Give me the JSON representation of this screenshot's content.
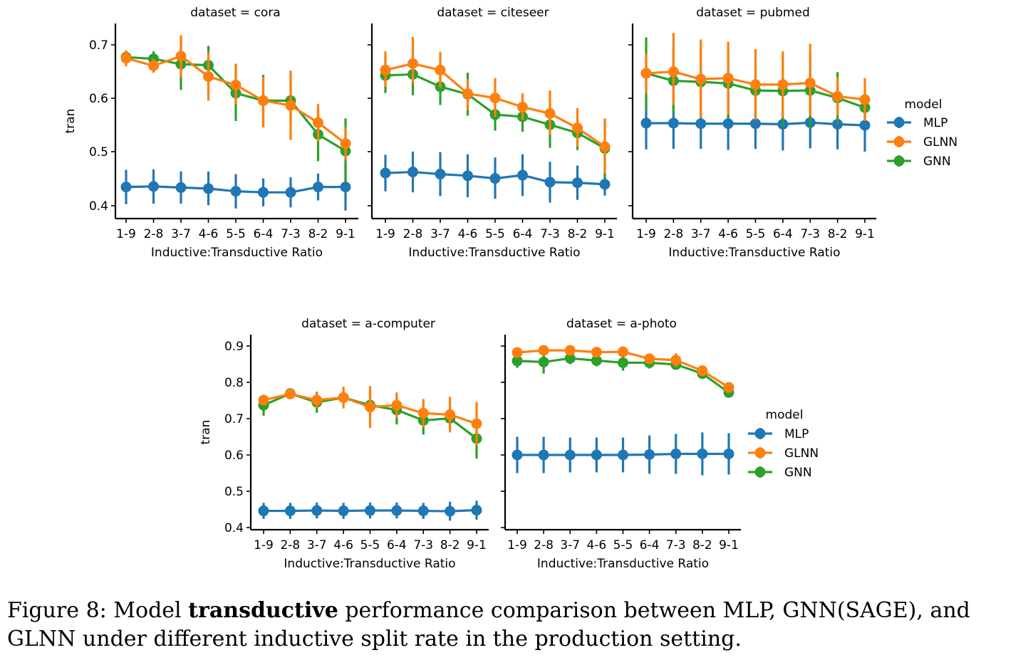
{
  "caption": {
    "prefix": "Figure 8: Model ",
    "bold": "transductive",
    "suffix": " performance comparison between MLP, GNN(SAGE), and GLNN under different inductive split rate in the production setting."
  },
  "legend": {
    "title": "model",
    "entries": [
      "MLP",
      "GLNN",
      "GNN"
    ]
  },
  "colors": {
    "MLP": "#1f77b4",
    "GLNN": "#ff7f0e",
    "GNN": "#2ca02c"
  },
  "chart_data": [
    {
      "type": "line",
      "title": "dataset = cora",
      "xlabel": "Inductive:Transductive Ratio",
      "ylabel": "tran",
      "categories": [
        "1-9",
        "2-8",
        "3-7",
        "4-6",
        "5-5",
        "6-4",
        "7-3",
        "8-2",
        "9-1"
      ],
      "yticks": [
        "0.4",
        "0.5",
        "0.6",
        "0.7"
      ],
      "ylim": [
        0.37,
        0.735
      ],
      "series": [
        {
          "name": "MLP",
          "values": [
            0.435,
            0.436,
            0.434,
            0.432,
            0.427,
            0.425,
            0.425,
            0.435,
            0.435
          ],
          "err": [
            [
              0.403,
              0.467
            ],
            [
              0.404,
              0.468
            ],
            [
              0.404,
              0.464
            ],
            [
              0.401,
              0.464
            ],
            [
              0.395,
              0.459
            ],
            [
              0.399,
              0.451
            ],
            [
              0.397,
              0.453
            ],
            [
              0.41,
              0.46
            ],
            [
              0.391,
              0.479
            ]
          ]
        },
        {
          "name": "GLNN",
          "values": [
            0.675,
            0.661,
            0.679,
            0.641,
            0.625,
            0.596,
            0.587,
            0.555,
            0.516
          ],
          "err": [
            [
              0.66,
              0.69
            ],
            [
              0.648,
              0.674
            ],
            [
              0.64,
              0.718
            ],
            [
              0.596,
              0.686
            ],
            [
              0.589,
              0.665
            ],
            [
              0.546,
              0.64
            ],
            [
              0.523,
              0.652
            ],
            [
              0.52,
              0.59
            ],
            [
              0.486,
              0.546
            ]
          ]
        },
        {
          "name": "GNN",
          "values": [
            0.677,
            0.674,
            0.664,
            0.662,
            0.61,
            0.596,
            0.596,
            0.533,
            0.502
          ],
          "err": [
            [
              0.669,
              0.685
            ],
            [
              0.66,
              0.688
            ],
            [
              0.616,
              0.712
            ],
            [
              0.626,
              0.698
            ],
            [
              0.558,
              0.662
            ],
            [
              0.548,
              0.644
            ],
            [
              0.553,
              0.639
            ],
            [
              0.483,
              0.583
            ],
            [
              0.443,
              0.563
            ]
          ]
        }
      ]
    },
    {
      "type": "line",
      "title": "dataset = citeseer",
      "xlabel": "Inductive:Transductive Ratio",
      "ylabel": "",
      "categories": [
        "1-9",
        "2-8",
        "3-7",
        "4-6",
        "5-5",
        "6-4",
        "7-3",
        "8-2",
        "9-1"
      ],
      "yticks": [
        "0.4",
        "0.5",
        "0.6",
        "0.7"
      ],
      "ylim": [
        0.37,
        0.735
      ],
      "series": [
        {
          "name": "MLP",
          "values": [
            0.461,
            0.463,
            0.459,
            0.456,
            0.451,
            0.457,
            0.444,
            0.443,
            0.44
          ],
          "err": [
            [
              0.427,
              0.495
            ],
            [
              0.425,
              0.501
            ],
            [
              0.418,
              0.5
            ],
            [
              0.416,
              0.496
            ],
            [
              0.413,
              0.49
            ],
            [
              0.418,
              0.496
            ],
            [
              0.406,
              0.482
            ],
            [
              0.411,
              0.475
            ],
            [
              0.419,
              0.461
            ]
          ]
        },
        {
          "name": "GLNN",
          "values": [
            0.653,
            0.665,
            0.653,
            0.609,
            0.601,
            0.584,
            0.572,
            0.545,
            0.51
          ],
          "err": [
            [
              0.622,
              0.688
            ],
            [
              0.628,
              0.715
            ],
            [
              0.62,
              0.687
            ],
            [
              0.578,
              0.636
            ],
            [
              0.566,
              0.638
            ],
            [
              0.56,
              0.61
            ],
            [
              0.532,
              0.615
            ],
            [
              0.51,
              0.582
            ],
            [
              0.46,
              0.563
            ]
          ]
        },
        {
          "name": "GNN",
          "values": [
            0.643,
            0.645,
            0.622,
            0.608,
            0.57,
            0.566,
            0.551,
            0.536,
            0.507
          ],
          "err": [
            [
              0.61,
              0.68
            ],
            [
              0.606,
              0.684
            ],
            [
              0.588,
              0.656
            ],
            [
              0.568,
              0.648
            ],
            [
              0.54,
              0.6
            ],
            [
              0.538,
              0.594
            ],
            [
              0.508,
              0.594
            ],
            [
              0.504,
              0.568
            ],
            [
              0.452,
              0.562
            ]
          ]
        }
      ]
    },
    {
      "type": "line",
      "title": "dataset = pubmed",
      "xlabel": "Inductive:Transductive Ratio",
      "ylabel": "",
      "categories": [
        "1-9",
        "2-8",
        "3-7",
        "4-6",
        "5-5",
        "6-4",
        "7-3",
        "8-2",
        "9-1"
      ],
      "yticks": [
        "0.4",
        "0.5",
        "0.6",
        "0.7"
      ],
      "ylim": [
        0.37,
        0.735
      ],
      "series": [
        {
          "name": "MLP",
          "values": [
            0.554,
            0.554,
            0.553,
            0.553,
            0.553,
            0.552,
            0.555,
            0.552,
            0.55
          ],
          "err": [
            [
              0.505,
              0.603
            ],
            [
              0.506,
              0.602
            ],
            [
              0.506,
              0.6
            ],
            [
              0.504,
              0.602
            ],
            [
              0.506,
              0.6
            ],
            [
              0.503,
              0.601
            ],
            [
              0.507,
              0.603
            ],
            [
              0.505,
              0.599
            ],
            [
              0.501,
              0.599
            ]
          ]
        },
        {
          "name": "GLNN",
          "values": [
            0.647,
            0.65,
            0.636,
            0.638,
            0.626,
            0.626,
            0.629,
            0.604,
            0.598
          ],
          "err": [
            [
              0.61,
              0.684
            ],
            [
              0.588,
              0.722
            ],
            [
              0.564,
              0.71
            ],
            [
              0.57,
              0.706
            ],
            [
              0.56,
              0.692
            ],
            [
              0.564,
              0.688
            ],
            [
              0.568,
              0.702
            ],
            [
              0.568,
              0.64
            ],
            [
              0.558,
              0.638
            ]
          ]
        },
        {
          "name": "GNN",
          "values": [
            0.647,
            0.633,
            0.631,
            0.628,
            0.615,
            0.614,
            0.615,
            0.601,
            0.583
          ],
          "err": [
            [
              0.58,
              0.714
            ],
            [
              0.572,
              0.694
            ],
            [
              0.568,
              0.694
            ],
            [
              0.564,
              0.692
            ],
            [
              0.56,
              0.67
            ],
            [
              0.548,
              0.68
            ],
            [
              0.546,
              0.684
            ],
            [
              0.553,
              0.649
            ],
            [
              0.568,
              0.598
            ]
          ]
        }
      ]
    },
    {
      "type": "line",
      "title": "dataset = a-computer",
      "xlabel": "Inductive:Transductive Ratio",
      "ylabel": "tran",
      "categories": [
        "1-9",
        "2-8",
        "3-7",
        "4-6",
        "5-5",
        "6-4",
        "7-3",
        "8-2",
        "9-1"
      ],
      "yticks": [
        "0.4",
        "0.5",
        "0.6",
        "0.7",
        "0.8",
        "0.9"
      ],
      "ylim": [
        0.39,
        0.932
      ],
      "series": [
        {
          "name": "MLP",
          "values": [
            0.446,
            0.446,
            0.447,
            0.446,
            0.447,
            0.447,
            0.446,
            0.445,
            0.448
          ],
          "err": [
            [
              0.424,
              0.468
            ],
            [
              0.424,
              0.468
            ],
            [
              0.425,
              0.469
            ],
            [
              0.424,
              0.468
            ],
            [
              0.425,
              0.469
            ],
            [
              0.425,
              0.469
            ],
            [
              0.424,
              0.468
            ],
            [
              0.419,
              0.471
            ],
            [
              0.422,
              0.474
            ]
          ]
        },
        {
          "name": "GLNN",
          "values": [
            0.751,
            0.768,
            0.751,
            0.758,
            0.732,
            0.737,
            0.715,
            0.711,
            0.686
          ],
          "err": [
            [
              0.738,
              0.764
            ],
            [
              0.76,
              0.776
            ],
            [
              0.73,
              0.772
            ],
            [
              0.728,
              0.788
            ],
            [
              0.674,
              0.79
            ],
            [
              0.702,
              0.772
            ],
            [
              0.676,
              0.754
            ],
            [
              0.662,
              0.76
            ],
            [
              0.626,
              0.746
            ]
          ]
        },
        {
          "name": "GNN",
          "values": [
            0.737,
            0.769,
            0.745,
            0.758,
            0.737,
            0.724,
            0.695,
            0.701,
            0.645
          ],
          "err": [
            [
              0.708,
              0.766
            ],
            [
              0.76,
              0.778
            ],
            [
              0.716,
              0.774
            ],
            [
              0.738,
              0.778
            ],
            [
              0.704,
              0.77
            ],
            [
              0.684,
              0.764
            ],
            [
              0.656,
              0.734
            ],
            [
              0.668,
              0.734
            ],
            [
              0.59,
              0.7
            ]
          ]
        }
      ]
    },
    {
      "type": "line",
      "title": "dataset = a-photo",
      "xlabel": "Inductive:Transductive Ratio",
      "ylabel": "",
      "categories": [
        "1-9",
        "2-8",
        "3-7",
        "4-6",
        "5-5",
        "6-4",
        "7-3",
        "8-2",
        "9-1"
      ],
      "yticks": [
        "0.4",
        "0.5",
        "0.6",
        "0.7",
        "0.8",
        "0.9"
      ],
      "ylim": [
        0.39,
        0.932
      ],
      "series": [
        {
          "name": "MLP",
          "values": [
            0.6,
            0.6,
            0.6,
            0.6,
            0.6,
            0.601,
            0.603,
            0.603,
            0.603
          ],
          "err": [
            [
              0.55,
              0.65
            ],
            [
              0.55,
              0.65
            ],
            [
              0.552,
              0.648
            ],
            [
              0.552,
              0.648
            ],
            [
              0.552,
              0.648
            ],
            [
              0.548,
              0.654
            ],
            [
              0.548,
              0.658
            ],
            [
              0.544,
              0.662
            ],
            [
              0.546,
              0.66
            ]
          ]
        },
        {
          "name": "GLNN",
          "values": [
            0.882,
            0.888,
            0.888,
            0.883,
            0.884,
            0.865,
            0.861,
            0.832,
            0.786
          ],
          "err": [
            [
              0.872,
              0.892
            ],
            [
              0.88,
              0.896
            ],
            [
              0.878,
              0.898
            ],
            [
              0.872,
              0.894
            ],
            [
              0.874,
              0.894
            ],
            [
              0.852,
              0.878
            ],
            [
              0.842,
              0.88
            ],
            [
              0.82,
              0.844
            ],
            [
              0.774,
              0.798
            ]
          ]
        },
        {
          "name": "GNN",
          "values": [
            0.859,
            0.856,
            0.866,
            0.86,
            0.854,
            0.854,
            0.849,
            0.824,
            0.772
          ],
          "err": [
            [
              0.84,
              0.878
            ],
            [
              0.824,
              0.888
            ],
            [
              0.85,
              0.882
            ],
            [
              0.844,
              0.876
            ],
            [
              0.832,
              0.876
            ],
            [
              0.838,
              0.87
            ],
            [
              0.836,
              0.862
            ],
            [
              0.816,
              0.832
            ],
            [
              0.76,
              0.784
            ]
          ]
        }
      ]
    }
  ]
}
